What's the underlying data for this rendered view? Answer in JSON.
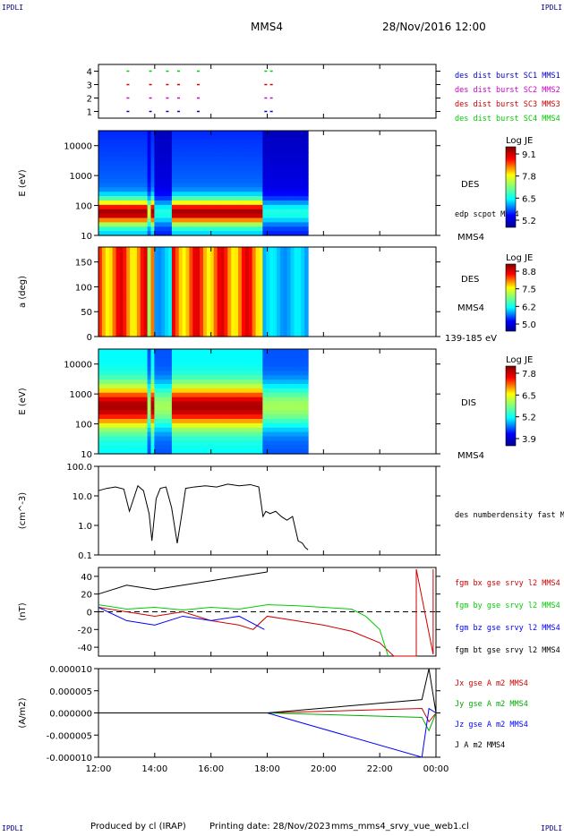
{
  "corner_label": "IPDLI",
  "header": {
    "spacecraft": "MMS4",
    "datetime": "28/Nov/2016 12:00"
  },
  "footer": {
    "produced_by": "Produced by cl (IRAP)",
    "printing_date": "Printing date: 28/Nov/2023",
    "filename": "mms_mms4_srvy_vue_web1.cl"
  },
  "time_axis": {
    "ticks": [
      "12:00",
      "14:00",
      "16:00",
      "18:00",
      "20:00",
      "22:00",
      "00:00"
    ],
    "range_hours": [
      12,
      24
    ]
  },
  "chart_data": [
    {
      "type": "scatter",
      "panel": "burst",
      "yticks": [
        "1",
        "2",
        "3",
        "4"
      ],
      "ylim": [
        0.5,
        4.5
      ],
      "series": [
        {
          "name": "des dist burst SC1 MMS1",
          "color": "#0000cc",
          "y": 1,
          "x": [
            13.0,
            13.8,
            14.4,
            14.8,
            15.5,
            17.9,
            18.1
          ]
        },
        {
          "name": "des dist burst SC2 MMS2",
          "color": "#cc00cc",
          "y": 2,
          "x": [
            13.0,
            13.8,
            14.4,
            14.8,
            15.5,
            17.9,
            18.1
          ]
        },
        {
          "name": "des dist burst SC3 MMS3",
          "color": "#cc0000",
          "y": 3,
          "x": [
            13.0,
            13.8,
            14.4,
            14.8,
            15.5,
            17.9,
            18.1
          ]
        },
        {
          "name": "des dist burst SC4 MMS4",
          "color": "#00cc00",
          "y": 4,
          "x": [
            13.0,
            13.8,
            14.4,
            14.8,
            15.5,
            17.9,
            18.1
          ]
        }
      ]
    },
    {
      "type": "heatmap",
      "panel": "des_energy",
      "ylabel": "E (eV)",
      "yscale": "log",
      "yticks": [
        "10",
        "100",
        "1000",
        "10000"
      ],
      "label": "DES",
      "label2": "edp scpot MMS4",
      "spacecraft": "MMS4",
      "colorbar": {
        "title": "Log JE",
        "ticks": [
          "9.1",
          "7.8",
          "6.5",
          "5.2"
        ]
      },
      "data_end_hour": 19.45
    },
    {
      "type": "heatmap",
      "panel": "des_pitch",
      "ylabel": "a (deg)",
      "yticks": [
        "0",
        "50",
        "100",
        "150"
      ],
      "ylim": [
        0,
        180
      ],
      "label": "DES",
      "spacecraft": "MMS4",
      "energy_range": "139-185 eV",
      "colorbar": {
        "title": "Log JE",
        "ticks": [
          "8.8",
          "7.5",
          "6.2",
          "5.0"
        ]
      },
      "data_end_hour": 19.45
    },
    {
      "type": "heatmap",
      "panel": "dis_energy",
      "ylabel": "E (eV)",
      "yscale": "log",
      "yticks": [
        "10",
        "100",
        "1000",
        "10000"
      ],
      "label": "DIS",
      "spacecraft": "MMS4",
      "colorbar": {
        "title": "Log JE",
        "ticks": [
          "7.8",
          "6.5",
          "5.2",
          "3.9"
        ]
      },
      "data_end_hour": 19.45
    },
    {
      "type": "line",
      "panel": "density",
      "ylabel": "(cm^-3)",
      "yscale": "log",
      "yticks": [
        "0.1",
        "1.0",
        "10.0",
        "100.0"
      ],
      "ylim": [
        0.1,
        100
      ],
      "series": [
        {
          "name": "des numberdensity fast M",
          "color": "#000000",
          "x": [
            12.0,
            12.3,
            12.6,
            12.9,
            13.1,
            13.4,
            13.6,
            13.8,
            13.9,
            14.05,
            14.2,
            14.4,
            14.6,
            14.8,
            14.95,
            15.1,
            15.4,
            15.8,
            16.2,
            16.6,
            17.0,
            17.4,
            17.7,
            17.85,
            17.95,
            18.1,
            18.3,
            18.5,
            18.7,
            18.9,
            19.1,
            19.25,
            19.35,
            19.45
          ],
          "y": [
            15,
            18,
            20,
            17,
            3,
            22,
            15,
            2.5,
            0.3,
            8,
            18,
            20,
            4,
            0.25,
            2,
            18,
            20,
            22,
            20,
            25,
            22,
            24,
            20,
            2,
            3,
            2.5,
            3,
            2,
            1.5,
            2,
            0.3,
            0.25,
            0.18,
            0.15
          ]
        }
      ]
    },
    {
      "type": "line",
      "panel": "magnetic_field",
      "ylabel": "(nT)",
      "yticks": [
        "-40",
        "-20",
        "0",
        "20",
        "40"
      ],
      "ylim": [
        -50,
        50
      ],
      "series": [
        {
          "name": "fgm bx gse srvy l2 MMS4",
          "color": "#cc0000",
          "x": [
            12,
            13,
            14,
            15,
            16,
            17,
            17.5,
            18,
            19,
            20,
            21,
            22,
            22.5,
            23.3,
            23.3,
            23.9,
            23.9
          ],
          "y": [
            5,
            0,
            -5,
            0,
            -10,
            -15,
            -20,
            -5,
            -10,
            -15,
            -22,
            -35,
            -50,
            -50,
            48,
            -48,
            48
          ]
        },
        {
          "name": "fgm by gse srvy l2 MMS4",
          "color": "#00cc00",
          "x": [
            12,
            13,
            14,
            15,
            16,
            17,
            18,
            19,
            20,
            21,
            21.5,
            22,
            22.3
          ],
          "y": [
            8,
            3,
            5,
            2,
            5,
            3,
            8,
            7,
            5,
            3,
            -5,
            -20,
            -50
          ]
        },
        {
          "name": "fgm bz gse srvy l2 MMS4",
          "color": "#0000ff",
          "x": [
            12,
            13,
            14,
            15,
            16,
            17,
            17.9
          ],
          "y": [
            5,
            -10,
            -15,
            -5,
            -10,
            -5,
            -20
          ]
        },
        {
          "name": "fgm bt gse srvy l2 MMS4",
          "color": "#000000",
          "x": [
            12,
            13,
            14,
            15,
            16,
            17,
            18.0
          ],
          "y": [
            20,
            30,
            25,
            30,
            35,
            40,
            45
          ]
        }
      ]
    },
    {
      "type": "line",
      "panel": "current",
      "ylabel": "(A/m2)",
      "yticks": [
        "-0.000010",
        "-0.000005",
        "0.000000",
        "0.000005",
        "0.000010"
      ],
      "ylim": [
        -1e-05,
        1e-05
      ],
      "series": [
        {
          "name": "Jx gse A m2 MMS4",
          "color": "#cc0000",
          "x": [
            12,
            18,
            23.5,
            23.75,
            24
          ],
          "y": [
            0,
            0,
            1e-06,
            -2e-06,
            0
          ]
        },
        {
          "name": "Jy gse A m2 MMS4",
          "color": "#00aa00",
          "x": [
            12,
            18,
            23.5,
            23.75,
            24
          ],
          "y": [
            0,
            0,
            -1e-06,
            -4e-06,
            0
          ]
        },
        {
          "name": "Jz gse A m2 MMS4",
          "color": "#0000ff",
          "x": [
            12,
            18,
            23.5,
            23.75,
            24
          ],
          "y": [
            0,
            0,
            -1e-05,
            1e-06,
            0
          ]
        },
        {
          "name": "J A m2 MMS4",
          "color": "#000000",
          "x": [
            12,
            18,
            23.5,
            23.75,
            24
          ],
          "y": [
            0,
            0,
            3e-06,
            1e-05,
            0
          ]
        }
      ]
    }
  ]
}
